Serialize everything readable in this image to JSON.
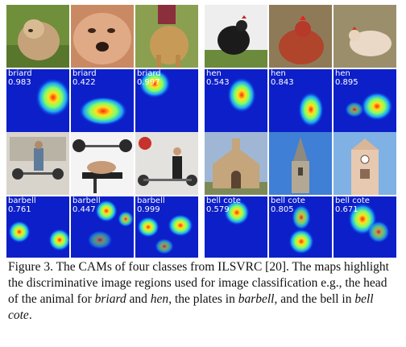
{
  "figure": {
    "groups": [
      {
        "class_name": "briard",
        "photos": [
          "dog-on-grass",
          "dog-face-closeup",
          "dog-standing"
        ],
        "scores": [
          "0.983",
          "0.422",
          "0.997"
        ]
      },
      {
        "class_name": "hen",
        "photos": [
          "hen-dark",
          "hen-red",
          "hen-white"
        ],
        "scores": [
          "0.543",
          "0.843",
          "0.895"
        ]
      },
      {
        "class_name": "barbell",
        "photos": [
          "gym-lifter",
          "bench-press",
          "gym-room"
        ],
        "scores": [
          "0.761",
          "0.447",
          "0.999"
        ]
      },
      {
        "class_name": "bell cote",
        "photos": [
          "chapel",
          "church-spire",
          "bell-tower"
        ],
        "scores": [
          "0.579",
          "0.805",
          "0.671"
        ]
      }
    ],
    "heatmap_colors": [
      "#0d1fc8",
      "#19a3ff",
      "#7cff6a",
      "#ffe21a",
      "#ff2a10"
    ]
  },
  "caption": {
    "text_1": "Figure 3. The CAMs of four classes from ILSVRC [20]. The maps highlight the discriminative image regions used for image classification e.g., the head of the animal for ",
    "em_1": "briard",
    "text_2": " and ",
    "em_2": "hen",
    "text_3": ", the plates in ",
    "em_3": "barbell",
    "text_4": ", and the bell in ",
    "em_4": "bell cote",
    "text_5": "."
  }
}
